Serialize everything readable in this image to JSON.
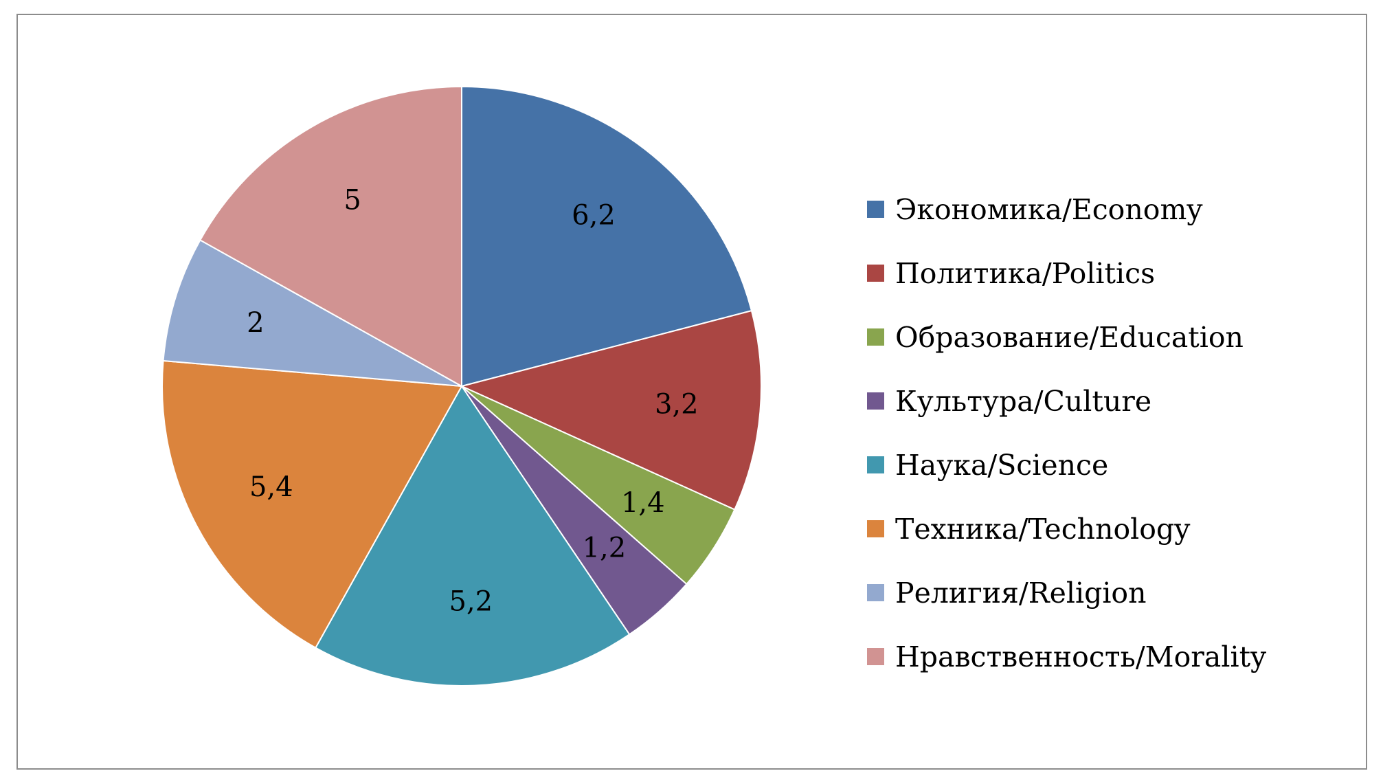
{
  "chart_data": {
    "type": "pie",
    "title": "",
    "legend_position": "right",
    "start_angle_deg": 0,
    "direction": "clockwise",
    "slices": [
      {
        "label": "Экономика/Economy",
        "value": 6.2,
        "display": "6,2",
        "color": "#4572A7"
      },
      {
        "label": "Политика/Politics",
        "value": 3.2,
        "display": "3,2",
        "color": "#AA4643"
      },
      {
        "label": "Образование/Education",
        "value": 1.4,
        "display": "1,4",
        "color": "#89A54E"
      },
      {
        "label": "Культура/Culture",
        "value": 1.2,
        "display": "1,2",
        "color": "#71588F"
      },
      {
        "label": "Наука/Science",
        "value": 5.2,
        "display": "5,2",
        "color": "#4198AF"
      },
      {
        "label": "Техника/Technology",
        "value": 5.4,
        "display": "5,4",
        "color": "#DB843D"
      },
      {
        "label": "Религия/Religion",
        "value": 2,
        "display": "2",
        "color": "#93A9CF"
      },
      {
        "label": "Нравственность/Morality",
        "value": 5,
        "display": "5",
        "color": "#D19392"
      }
    ]
  }
}
